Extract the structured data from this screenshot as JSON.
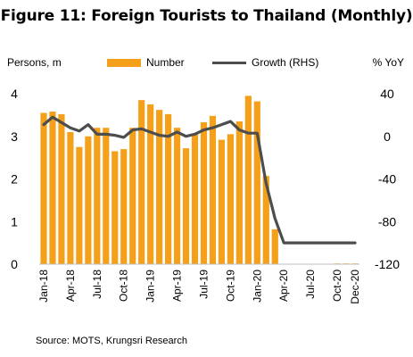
{
  "chart_data": {
    "type": "bar+line",
    "title": "Figure 11: Foreign Tourists  to Thailand (Monthly)",
    "ylabel_left": "Persons, m",
    "ylabel_right": "% YoY",
    "source": "Source: MOTS, Krungsri Research",
    "legend": {
      "bar": "Number",
      "line": "Growth (RHS)",
      "position": "top"
    },
    "x_tick_labels": [
      "Jan-18",
      "Apr-18",
      "Jul-18",
      "Oct-18",
      "Jan-19",
      "Apr-19",
      "Jul-19",
      "Oct-19",
      "Jan-20",
      "Apr-20",
      "Jul-20",
      "Oct-20",
      "Dec-20"
    ],
    "x_tick_indices": [
      0,
      3,
      6,
      9,
      12,
      15,
      18,
      21,
      24,
      27,
      30,
      33,
      35
    ],
    "yticks_left": [
      "0",
      "1",
      "2",
      "3",
      "4"
    ],
    "yticks_right": [
      "-120",
      "-80",
      "-40",
      "0",
      "40"
    ],
    "ylim_left": [
      0,
      4
    ],
    "ylim_right": [
      -120,
      40
    ],
    "grid": false,
    "colors": {
      "bar": "#F5A01A",
      "line": "#4D4D4D"
    },
    "months": [
      "Jan-18",
      "Feb-18",
      "Mar-18",
      "Apr-18",
      "May-18",
      "Jun-18",
      "Jul-18",
      "Aug-18",
      "Sep-18",
      "Oct-18",
      "Nov-18",
      "Dec-18",
      "Jan-19",
      "Feb-19",
      "Mar-19",
      "Apr-19",
      "May-19",
      "Jun-19",
      "Jul-19",
      "Aug-19",
      "Sep-19",
      "Oct-19",
      "Nov-19",
      "Dec-19",
      "Jan-20",
      "Feb-20",
      "Mar-20",
      "Apr-20",
      "May-20",
      "Jun-20",
      "Jul-20",
      "Aug-20",
      "Sep-20",
      "Oct-20",
      "Nov-20",
      "Dec-20"
    ],
    "series": [
      {
        "name": "Number",
        "kind": "bar",
        "axis": "left",
        "values": [
          3.55,
          3.58,
          3.52,
          3.1,
          2.75,
          3.0,
          3.2,
          3.2,
          2.65,
          2.7,
          3.2,
          3.85,
          3.75,
          3.62,
          3.52,
          3.2,
          2.72,
          3.05,
          3.33,
          3.48,
          2.92,
          3.05,
          3.35,
          3.95,
          3.82,
          2.07,
          0.82,
          0.0,
          0.0,
          0.0,
          0.0,
          0.0,
          0.0,
          0.01,
          0.01,
          0.01
        ]
      },
      {
        "name": "Growth (RHS)",
        "kind": "line",
        "axis": "right",
        "values": [
          11,
          18,
          13,
          8,
          5,
          11,
          2,
          2,
          1,
          -1,
          6,
          7,
          4,
          1,
          0,
          4,
          0,
          2,
          6,
          8,
          11,
          14,
          6,
          3,
          3,
          -44,
          -77,
          -100,
          -100,
          -100,
          -100,
          -100,
          -100,
          -100,
          -100,
          -100
        ]
      }
    ]
  }
}
